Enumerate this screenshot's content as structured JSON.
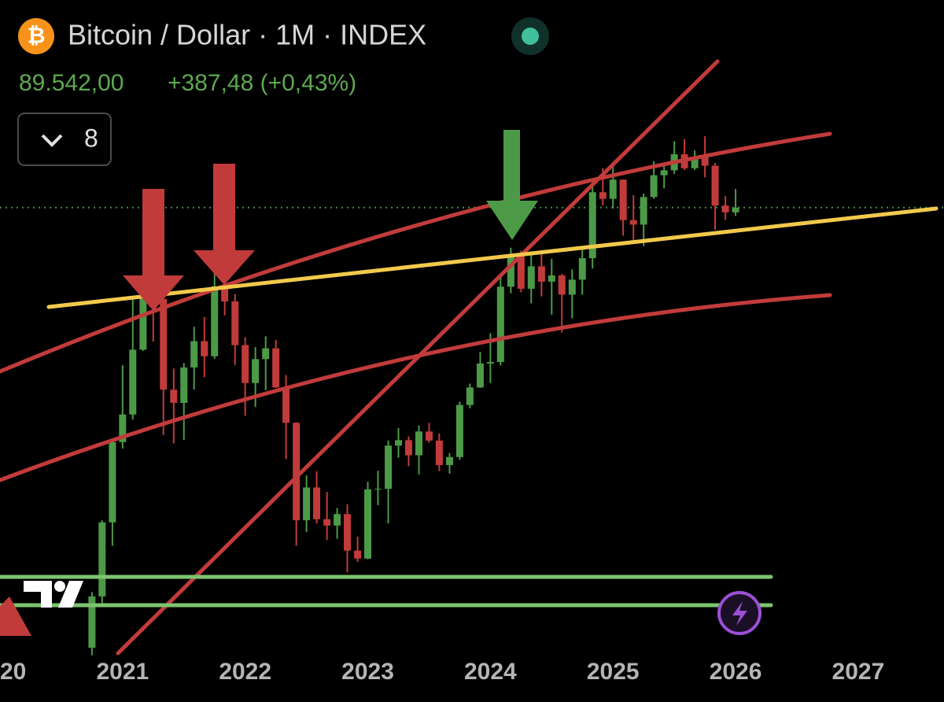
{
  "header": {
    "icon": "₿",
    "title": "Bitcoin / Dollar · 1M · INDEX",
    "price": "89.542,00",
    "change": "+387,48 (+0,43%)",
    "indicators": "8"
  },
  "chart_data": {
    "type": "candlestick",
    "log_scale": true,
    "up_color": "#4c9a48",
    "down_color": "#c23b3b",
    "xlim": [
      2020,
      2027.7
    ],
    "xticks": [
      {
        "value": 2020,
        "label": "20"
      },
      2021,
      2022,
      2023,
      2024,
      2025,
      2026,
      2027
    ],
    "ylim": [
      10500,
      243000
    ],
    "x": [
      2020.75,
      2020.833,
      2020.917,
      2021,
      2021.083,
      2021.167,
      2021.25,
      2021.333,
      2021.417,
      2021.5,
      2021.583,
      2021.667,
      2021.75,
      2021.833,
      2021.917,
      2022,
      2022.083,
      2022.167,
      2022.25,
      2022.333,
      2022.417,
      2022.5,
      2022.583,
      2022.667,
      2022.75,
      2022.833,
      2022.917,
      2023,
      2023.083,
      2023.167,
      2023.25,
      2023.333,
      2023.417,
      2023.5,
      2023.583,
      2023.667,
      2023.75,
      2023.833,
      2023.917,
      2024,
      2024.083,
      2024.167,
      2024.25,
      2024.333,
      2024.417,
      2024.5,
      2024.583,
      2024.667,
      2024.75,
      2024.833,
      2024.917,
      2025,
      2025.083,
      2025.167,
      2025.25,
      2025.333,
      2025.417,
      2025.5,
      2025.583,
      2025.667,
      2025.75,
      2025.833,
      2025.917,
      2026
    ],
    "open": [
      10777,
      13800,
      19700,
      28990,
      33100,
      45200,
      58800,
      57700,
      37300,
      35000,
      41500,
      47100,
      43800,
      61300,
      57000,
      46200,
      38500,
      43200,
      45500,
      37700,
      31800,
      19900,
      23300,
      20000,
      19400,
      20500,
      17200,
      16550,
      23100,
      23150,
      28500,
      29250,
      27200,
      30500,
      29200,
      25950,
      26970,
      34650,
      37700,
      42300,
      42600,
      61200,
      71300,
      60600,
      67500,
      62700,
      64600,
      58900,
      63300,
      70200,
      96400,
      93400,
      102400,
      84300,
      82500,
      94200,
      104600,
      107100,
      115700,
      108200,
      114000,
      109500,
      90400,
      87500
    ],
    "high": [
      14100,
      19900,
      29300,
      41950,
      58350,
      61800,
      64900,
      59500,
      41300,
      42400,
      50500,
      52900,
      67000,
      69000,
      59100,
      47990,
      45800,
      48200,
      47400,
      40000,
      31900,
      24700,
      25200,
      22800,
      21100,
      21500,
      18400,
      23950,
      25250,
      29200,
      31000,
      29800,
      31400,
      31800,
      30200,
      27500,
      35200,
      38400,
      44700,
      48950,
      64000,
      73800,
      72800,
      71900,
      72000,
      70000,
      65100,
      66500,
      73600,
      99600,
      108300,
      109400,
      102500,
      95000,
      95800,
      111900,
      110500,
      123200,
      124400,
      117900,
      126200,
      111000,
      94600,
      97900
    ],
    "low": [
      10400,
      13200,
      17600,
      28100,
      32300,
      44950,
      47000,
      30000,
      28800,
      29300,
      37300,
      39600,
      43300,
      53300,
      42000,
      32900,
      34300,
      37200,
      37600,
      26700,
      17600,
      18800,
      19600,
      18100,
      18200,
      15500,
      16300,
      16500,
      21400,
      19600,
      26900,
      25800,
      24800,
      28900,
      25200,
      24900,
      26600,
      34100,
      37600,
      38500,
      41900,
      59300,
      59600,
      56500,
      58400,
      53500,
      49100,
      52600,
      58900,
      66800,
      90500,
      89200,
      78200,
      76600,
      74400,
      93400,
      98200,
      105300,
      107300,
      107300,
      103500,
      80500,
      84400,
      86000
    ],
    "close": [
      13800,
      19700,
      28990,
      33100,
      45200,
      58800,
      57700,
      37300,
      35000,
      41500,
      47100,
      43800,
      61300,
      57000,
      46200,
      38500,
      43200,
      45500,
      37700,
      31800,
      19900,
      23300,
      20000,
      19400,
      20500,
      17200,
      16550,
      23100,
      23150,
      28500,
      29250,
      27200,
      30500,
      29200,
      25950,
      26970,
      34650,
      37700,
      42300,
      42600,
      61200,
      71300,
      60600,
      67500,
      62700,
      64600,
      58900,
      63300,
      70200,
      96400,
      93400,
      102400,
      84300,
      82500,
      94200,
      104600,
      107100,
      115700,
      108200,
      114000,
      109500,
      90400,
      87500,
      89542
    ]
  }
}
